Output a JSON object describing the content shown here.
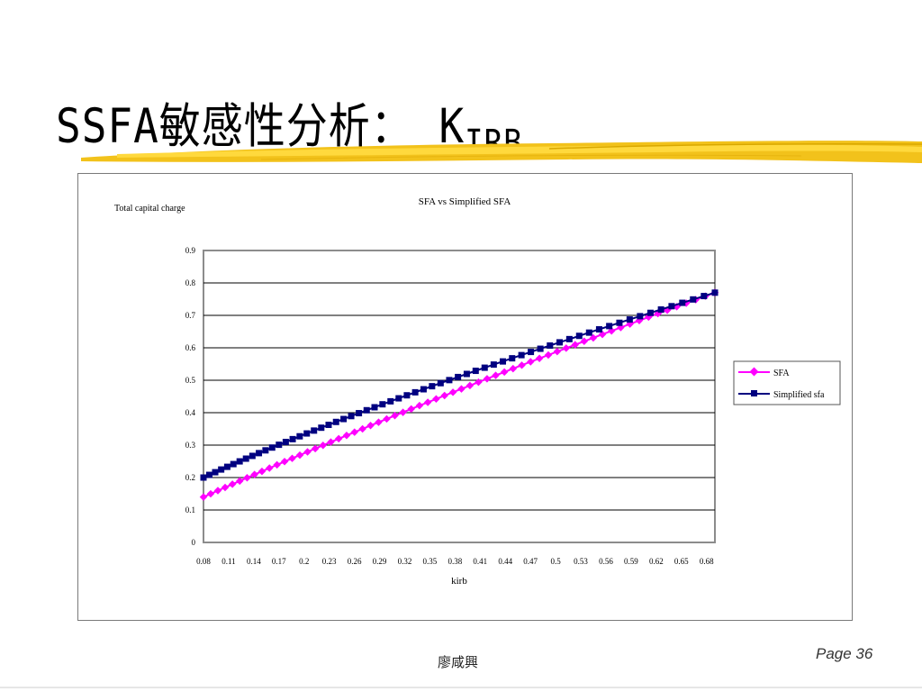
{
  "slide": {
    "title": "SSFA敏感性分析： K",
    "title_subscript": "IRB",
    "author": "廖咸興",
    "page_label": "Page 36"
  },
  "chart_data": {
    "type": "line",
    "title": "SFA vs Simplified SFA",
    "xlabel": "kirb",
    "ylabel": "Total capital charge",
    "ylim": [
      0,
      0.9
    ],
    "yticks": [
      "0",
      "0.1",
      "0.2",
      "0.3",
      "0.4",
      "0.5",
      "0.6",
      "0.7",
      "0.8",
      "0.9"
    ],
    "grid": true,
    "legend_position": "right",
    "x_ticks": [
      "0.08",
      "0.11",
      "0.14",
      "0.17",
      "0.2",
      "0.23",
      "0.26",
      "0.29",
      "0.32",
      "0.35",
      "0.38",
      "0.41",
      "0.44",
      "0.47",
      "0.5",
      "0.53",
      "0.56",
      "0.59",
      "0.62",
      "0.65",
      "0.68"
    ],
    "x": [
      0.08,
      0.09,
      0.1,
      0.11,
      0.12,
      0.13,
      0.14,
      0.15,
      0.16,
      0.17,
      0.18,
      0.19,
      0.2,
      0.21,
      0.22,
      0.23,
      0.24,
      0.25,
      0.26,
      0.27,
      0.28,
      0.29,
      0.3,
      0.31,
      0.32,
      0.33,
      0.34,
      0.35,
      0.36,
      0.37,
      0.38,
      0.39,
      0.4,
      0.41,
      0.42,
      0.43,
      0.44,
      0.45,
      0.46,
      0.47,
      0.48,
      0.49,
      0.5,
      0.51,
      0.52,
      0.53,
      0.54,
      0.55,
      0.56,
      0.57,
      0.58,
      0.59,
      0.6,
      0.61,
      0.62,
      0.63,
      0.64,
      0.65,
      0.66,
      0.67,
      0.68,
      0.69
    ],
    "series": [
      {
        "name": "SFA",
        "color": "#ff00ff",
        "marker": "diamond",
        "start": [
          0.08,
          0.14
        ],
        "control": [
          0.34,
          0.44
        ],
        "end": [
          0.69,
          0.77
        ]
      },
      {
        "name": "Simplified sfa",
        "color": "#000080",
        "marker": "square",
        "start": [
          0.08,
          0.2
        ],
        "control": [
          0.29,
          0.45
        ],
        "end": [
          0.69,
          0.77
        ]
      }
    ]
  }
}
